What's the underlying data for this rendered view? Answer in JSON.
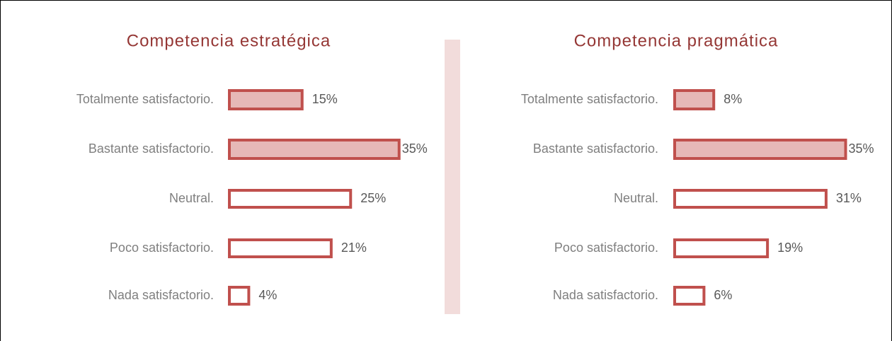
{
  "chart_data": [
    {
      "type": "barh",
      "title": "Competencia estratégica",
      "categories": [
        "Totalmente satisfactorio.",
        "Bastante satisfactorio.",
        "Neutral.",
        "Poco satisfactorio.",
        "Nada satisfactorio."
      ],
      "values": [
        15,
        35,
        25,
        21,
        4
      ],
      "value_labels": [
        "15%",
        "35%",
        "25%",
        "21%",
        "4%"
      ],
      "colors": [
        "#e6b8b7",
        "#e6b8b7",
        "#ffffff",
        "#ffffff",
        "#ffffff"
      ],
      "edgecolor": "#c0504d"
    },
    {
      "type": "barh",
      "title": "Competencia pragmática",
      "categories": [
        "Totalmente satisfactorio.",
        "Bastante satisfactorio.",
        "Neutral.",
        "Poco satisfactorio.",
        "Nada satisfactorio."
      ],
      "values": [
        8,
        35,
        31,
        19,
        6
      ],
      "value_labels": [
        "8%",
        "35%",
        "31%",
        "19%",
        "6%"
      ],
      "colors": [
        "#e6b8b7",
        "#e6b8b7",
        "#ffffff",
        "#ffffff",
        "#ffffff"
      ],
      "edgecolor": "#c0504d"
    }
  ]
}
